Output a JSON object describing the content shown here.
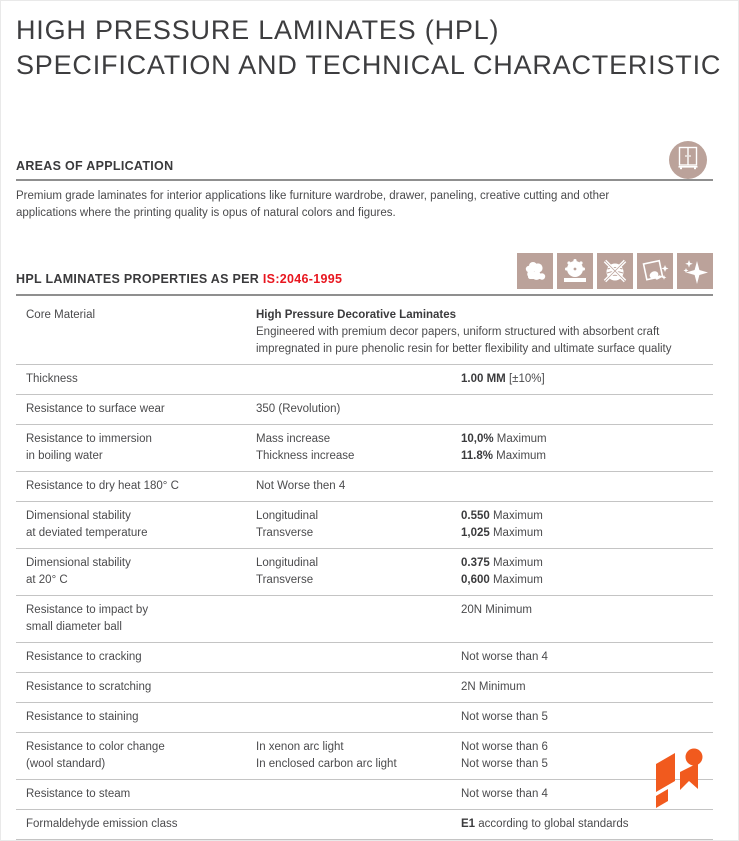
{
  "title": {
    "line1": "HIGH PRESSURE LAMINATES (HPL)",
    "line2": "SPECIFICATION AND TECHNICAL CHARACTERISTIC"
  },
  "areas_of_application": {
    "heading": "AREAS OF APPLICATION",
    "body": "Premium grade laminates for interior applications like furniture wardrobe, drawer, paneling, creative cutting and other applications where the printing quality is opus of natural colors and figures.",
    "badge_icon": "wardrobe-icon"
  },
  "properties_section": {
    "heading_prefix": "HPL LAMINATES PROPERTIES AS PER ",
    "heading_standard": "IS:2046-1995",
    "icons": [
      "clouds-icon",
      "saw-blade-icon",
      "no-scratch-icon",
      "easy-clean-icon",
      "shine-icon"
    ]
  },
  "table": {
    "rows": [
      {
        "c1": [
          [
            "Core Material"
          ]
        ],
        "c2": [
          [
            {
              "t": "High Pressure Decorative Laminates",
              "b": true
            }
          ],
          [
            "Engineered with premium decor papers, uniform structured with absorbent craft"
          ],
          [
            "impregnated in pure phenolic resin for better flexibility and ultimate surface quality"
          ]
        ],
        "c3": []
      },
      {
        "c1": [
          [
            "Thickness"
          ]
        ],
        "c2": [],
        "c3": [
          [
            {
              "t": "1.00 MM",
              "b": true
            },
            {
              "t": " [±10%]",
              "b": false
            }
          ]
        ]
      },
      {
        "c1": [
          [
            "Resistance to surface wear"
          ]
        ],
        "c2": [
          [
            "350 (Revolution)"
          ]
        ],
        "c3": []
      },
      {
        "c1": [
          [
            "Resistance to immersion"
          ],
          [
            "in boiling water"
          ]
        ],
        "c2": [
          [
            "Mass increase"
          ],
          [
            "Thickness increase"
          ]
        ],
        "c3": [
          [
            {
              "t": "10,0%",
              "b": true
            },
            {
              "t": " Maximum",
              "b": false
            }
          ],
          [
            {
              "t": "11.8%",
              "b": true
            },
            {
              "t": " Maximum",
              "b": false
            }
          ]
        ]
      },
      {
        "c1": [
          [
            "Resistance to dry heat 180° C"
          ]
        ],
        "c2": [
          [
            "Not Worse then 4"
          ]
        ],
        "c3": []
      },
      {
        "c1": [
          [
            "Dimensional stability"
          ],
          [
            "at deviated temperature"
          ]
        ],
        "c2": [
          [
            "Longitudinal"
          ],
          [
            "Transverse"
          ]
        ],
        "c3": [
          [
            {
              "t": "0.550",
              "b": true
            },
            {
              "t": " Maximum",
              "b": false
            }
          ],
          [
            {
              "t": "1,025",
              "b": true
            },
            {
              "t": " Maximum",
              "b": false
            }
          ]
        ]
      },
      {
        "c1": [
          [
            "Dimensional stability"
          ],
          [
            "at 20° C"
          ]
        ],
        "c2": [
          [
            "Longitudinal"
          ],
          [
            "Transverse"
          ]
        ],
        "c3": [
          [
            {
              "t": "0.375",
              "b": true
            },
            {
              "t": " Maximum",
              "b": false
            }
          ],
          [
            {
              "t": "0,600",
              "b": true
            },
            {
              "t": " Maximum",
              "b": false
            }
          ]
        ]
      },
      {
        "c1": [
          [
            "Resistance to impact by"
          ],
          [
            "small diameter ball"
          ]
        ],
        "c2": [],
        "c3": [
          [
            "20N Minimum"
          ]
        ]
      },
      {
        "c1": [
          [
            "Resistance to cracking"
          ]
        ],
        "c2": [],
        "c3": [
          [
            "Not worse than 4"
          ]
        ]
      },
      {
        "c1": [
          [
            "Resistance to scratching"
          ]
        ],
        "c2": [],
        "c3": [
          [
            "2N Minimum"
          ]
        ]
      },
      {
        "c1": [
          [
            "Resistance to staining"
          ]
        ],
        "c2": [],
        "c3": [
          [
            "Not worse than 5"
          ]
        ]
      },
      {
        "c1": [
          [
            "Resistance to color change"
          ],
          [
            "(wool standard)"
          ]
        ],
        "c2": [
          [
            "In xenon arc light"
          ],
          [
            "In enclosed carbon arc light"
          ]
        ],
        "c3": [
          [
            "Not worse than 6"
          ],
          [
            "Not worse than 5"
          ]
        ]
      },
      {
        "c1": [
          [
            "Resistance to steam"
          ]
        ],
        "c2": [],
        "c3": [
          [
            "Not worse than 4"
          ]
        ]
      },
      {
        "c1": [
          [
            "Formaldehyde emission class"
          ]
        ],
        "c2": [],
        "c3": [
          [
            {
              "t": "E1",
              "b": true
            },
            {
              "t": "  according to global standards",
              "b": false
            }
          ]
        ]
      }
    ]
  },
  "colors": {
    "accent_red": "#e8161f",
    "icon_taupe": "#bba29a",
    "logo_orange": "#f15a1e",
    "ink": "#3e3e40"
  }
}
